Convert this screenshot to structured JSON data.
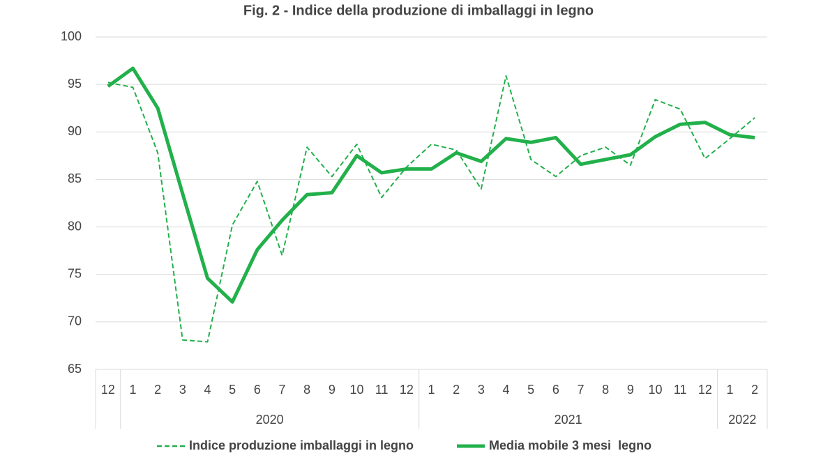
{
  "chart_data": {
    "type": "line",
    "title": "Fig. 2 - Indice della produzione di imballaggi in legno",
    "groups": [
      {
        "label": null,
        "categories": [
          "12"
        ]
      },
      {
        "label": "2020",
        "categories": [
          "1",
          "2",
          "3",
          "4",
          "5",
          "6",
          "7",
          "8",
          "9",
          "10",
          "11",
          "12"
        ]
      },
      {
        "label": "2021",
        "categories": [
          "1",
          "2",
          "3",
          "4",
          "5",
          "6",
          "7",
          "8",
          "9",
          "10",
          "11",
          "12"
        ]
      },
      {
        "label": "2022",
        "categories": [
          "1",
          "2"
        ]
      }
    ],
    "series": [
      {
        "name": "Indice produzione imballaggi in legno",
        "color": "#22b04b",
        "style": "dashed",
        "values": [
          95.2,
          94.7,
          87.8,
          68.1,
          67.9,
          80.2,
          84.8,
          77.0,
          88.4,
          85.3,
          88.7,
          83.1,
          86.3,
          88.7,
          88.1,
          84.0,
          95.9,
          87.1,
          85.3,
          87.5,
          88.4,
          86.5,
          93.4,
          92.4,
          87.2,
          89.3,
          91.5
        ]
      },
      {
        "name": "Media mobile 3 mesi  legno",
        "color": "#22b04b",
        "style": "solid",
        "values": [
          94.8,
          96.7,
          92.5,
          83.5,
          74.6,
          72.1,
          77.6,
          80.7,
          83.4,
          83.6,
          87.5,
          85.7,
          86.1,
          86.1,
          87.8,
          86.9,
          89.3,
          88.9,
          89.4,
          86.6,
          87.1,
          87.6,
          89.5,
          90.8,
          91.0,
          89.7,
          89.4
        ]
      }
    ],
    "ylim": [
      65,
      100
    ],
    "yticks": [
      65,
      70,
      75,
      80,
      85,
      90,
      95,
      100
    ],
    "grid": true,
    "legend": "bottom"
  }
}
